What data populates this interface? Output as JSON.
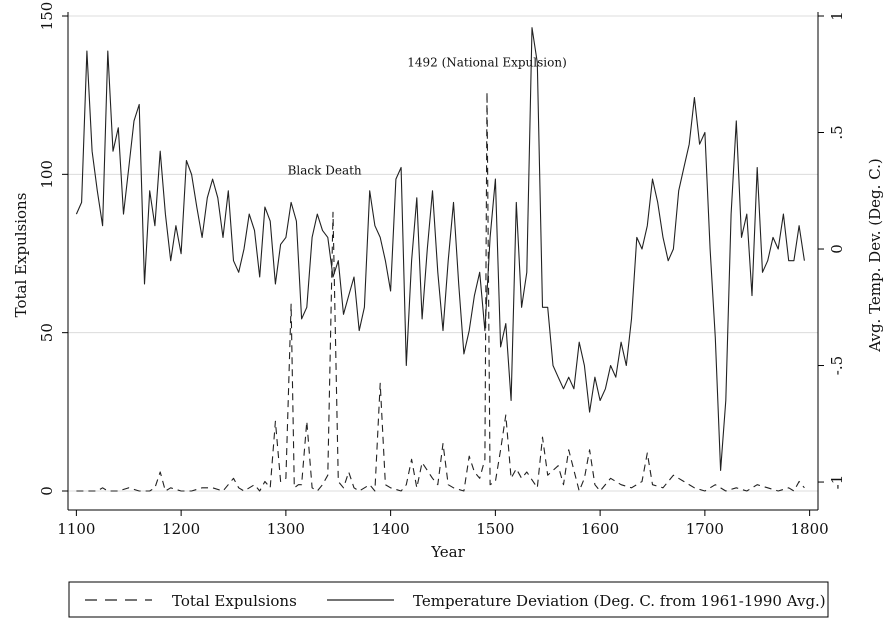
{
  "chart_data": {
    "type": "line",
    "title": "",
    "xlabel": "Year",
    "ylabel_left": "Total Expulsions",
    "ylabel_right": "Avg. Temp. Dev. (Deg. C.)",
    "xlim": [
      1092,
      1808
    ],
    "ylim_left": [
      -6,
      150
    ],
    "ylim_right": [
      -1.12,
      1.0
    ],
    "x_ticks": [
      1100,
      1200,
      1300,
      1400,
      1500,
      1600,
      1700,
      1800
    ],
    "x_tick_labels": [
      "1100",
      "1200",
      "1300",
      "1400",
      "1500",
      "1600",
      "1700",
      "1800"
    ],
    "y_left_ticks": [
      0,
      50,
      100,
      150
    ],
    "y_left_tick_labels": [
      "0",
      "50",
      "100",
      "150"
    ],
    "y_right_ticks": [
      1,
      0.5,
      0,
      -0.5,
      -1
    ],
    "y_right_tick_labels": [
      "1",
      ".5",
      "0",
      "-.5",
      "-1"
    ],
    "grid": true,
    "legend_position": "bottom",
    "annotations": [
      {
        "text": "Black Death",
        "x": 1337,
        "y": 100
      },
      {
        "text": "1492 (National Expulsion)",
        "x": 1492,
        "y": 134
      }
    ],
    "series": [
      {
        "name": "Total Expulsions",
        "axis": "left",
        "style": "dashed",
        "x": [
          1100,
          1110,
          1120,
          1125,
          1130,
          1140,
          1150,
          1160,
          1170,
          1175,
          1180,
          1185,
          1190,
          1200,
          1210,
          1220,
          1230,
          1240,
          1250,
          1255,
          1260,
          1270,
          1275,
          1280,
          1285,
          1290,
          1295,
          1300,
          1305,
          1308,
          1312,
          1315,
          1320,
          1325,
          1330,
          1335,
          1340,
          1345,
          1350,
          1355,
          1360,
          1365,
          1370,
          1380,
          1385,
          1390,
          1395,
          1400,
          1410,
          1415,
          1420,
          1425,
          1430,
          1440,
          1445,
          1450,
          1455,
          1460,
          1470,
          1475,
          1480,
          1485,
          1490,
          1492,
          1495,
          1500,
          1505,
          1510,
          1515,
          1520,
          1525,
          1530,
          1540,
          1545,
          1550,
          1560,
          1565,
          1570,
          1580,
          1585,
          1590,
          1595,
          1600,
          1610,
          1620,
          1630,
          1640,
          1645,
          1650,
          1660,
          1670,
          1680,
          1690,
          1700,
          1710,
          1720,
          1730,
          1740,
          1750,
          1760,
          1770,
          1780,
          1785,
          1790,
          1795
        ],
        "values": [
          0,
          0,
          0,
          1,
          0,
          0,
          1,
          0,
          0,
          1,
          6,
          0,
          1,
          0,
          0,
          1,
          1,
          0,
          4,
          1,
          0,
          2,
          0,
          3,
          1,
          22,
          3,
          4,
          59,
          1,
          2,
          2,
          22,
          1,
          0,
          2,
          5,
          88,
          3,
          1,
          6,
          1,
          0,
          2,
          0,
          34,
          2,
          1,
          0,
          2,
          10,
          1,
          9,
          4,
          2,
          15,
          2,
          1,
          0,
          11,
          6,
          4,
          10,
          126,
          2,
          3,
          13,
          24,
          4,
          7,
          4,
          6,
          1,
          17,
          5,
          8,
          2,
          13,
          0,
          4,
          13,
          2,
          0,
          4,
          2,
          1,
          3,
          12,
          2,
          1,
          5,
          3,
          1,
          0,
          2,
          0,
          1,
          0,
          2,
          1,
          0,
          1,
          0,
          3,
          1
        ]
      },
      {
        "name": "Temperature Deviation (Deg. C. from 1961-1990 Avg.)",
        "axis": "right",
        "style": "solid",
        "x": [
          1100,
          1105,
          1110,
          1115,
          1120,
          1125,
          1130,
          1135,
          1140,
          1145,
          1150,
          1155,
          1160,
          1165,
          1170,
          1175,
          1180,
          1185,
          1190,
          1195,
          1200,
          1205,
          1210,
          1215,
          1220,
          1225,
          1230,
          1235,
          1240,
          1245,
          1250,
          1255,
          1260,
          1265,
          1270,
          1275,
          1280,
          1285,
          1290,
          1295,
          1300,
          1305,
          1310,
          1315,
          1320,
          1325,
          1330,
          1335,
          1340,
          1345,
          1350,
          1355,
          1360,
          1365,
          1370,
          1375,
          1380,
          1385,
          1390,
          1395,
          1400,
          1405,
          1410,
          1415,
          1420,
          1425,
          1430,
          1435,
          1440,
          1445,
          1450,
          1455,
          1460,
          1465,
          1470,
          1475,
          1480,
          1485,
          1490,
          1495,
          1500,
          1505,
          1510,
          1515,
          1520,
          1525,
          1530,
          1535,
          1540,
          1545,
          1550,
          1555,
          1560,
          1565,
          1570,
          1575,
          1580,
          1585,
          1590,
          1595,
          1600,
          1605,
          1610,
          1615,
          1620,
          1625,
          1630,
          1635,
          1640,
          1645,
          1650,
          1655,
          1660,
          1665,
          1670,
          1675,
          1680,
          1685,
          1690,
          1695,
          1700,
          1705,
          1710,
          1715,
          1720,
          1725,
          1730,
          1735,
          1740,
          1745,
          1750,
          1755,
          1760,
          1765,
          1770,
          1775,
          1780,
          1785,
          1790,
          1795
        ],
        "values": [
          0.15,
          0.2,
          0.85,
          0.42,
          0.25,
          0.1,
          0.85,
          0.42,
          0.52,
          0.15,
          0.35,
          0.55,
          0.62,
          -0.15,
          0.25,
          0.1,
          0.42,
          0.15,
          -0.05,
          0.1,
          -0.02,
          0.38,
          0.32,
          0.18,
          0.05,
          0.22,
          0.3,
          0.22,
          0.05,
          0.25,
          -0.05,
          -0.1,
          0.0,
          0.15,
          0.08,
          -0.12,
          0.18,
          0.12,
          -0.15,
          0.02,
          0.05,
          0.2,
          0.12,
          -0.3,
          -0.25,
          0.05,
          0.15,
          0.08,
          0.05,
          -0.12,
          -0.05,
          -0.28,
          -0.2,
          -0.12,
          -0.35,
          -0.25,
          0.25,
          0.1,
          0.05,
          -0.05,
          -0.18,
          0.3,
          0.35,
          -0.5,
          -0.05,
          0.22,
          -0.3,
          0.0,
          0.25,
          -0.1,
          -0.35,
          -0.05,
          0.2,
          -0.15,
          -0.45,
          -0.35,
          -0.2,
          -0.1,
          -0.35,
          0.05,
          0.3,
          -0.42,
          -0.32,
          -0.65,
          0.2,
          -0.25,
          -0.1,
          0.95,
          0.8,
          -0.25,
          -0.25,
          -0.5,
          -0.55,
          -0.6,
          -0.55,
          -0.6,
          -0.4,
          -0.5,
          -0.7,
          -0.55,
          -0.65,
          -0.6,
          -0.5,
          -0.55,
          -0.4,
          -0.5,
          -0.3,
          0.05,
          0.0,
          0.1,
          0.3,
          0.2,
          0.05,
          -0.05,
          0.0,
          0.25,
          0.35,
          0.45,
          0.65,
          0.45,
          0.5,
          0.0,
          -0.38,
          -0.95,
          -0.65,
          0.15,
          0.55,
          0.05,
          0.15,
          -0.2,
          0.35,
          -0.1,
          -0.05,
          0.05,
          0.0,
          0.15,
          -0.05,
          -0.05,
          0.1,
          -0.05
        ]
      }
    ]
  }
}
